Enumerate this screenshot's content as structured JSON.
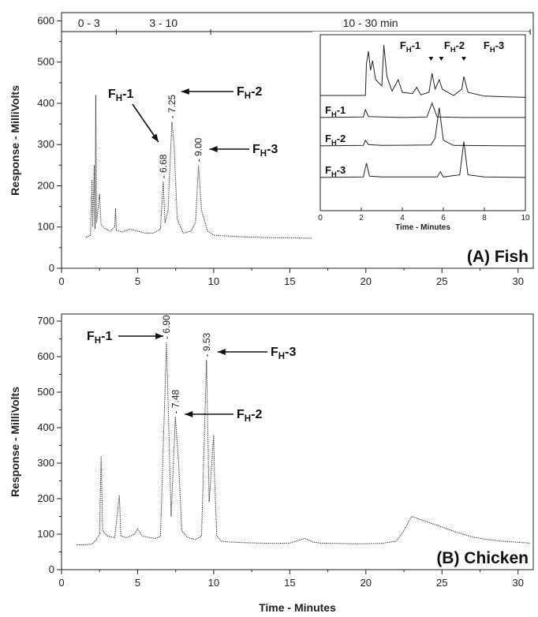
{
  "chart_data": [
    {
      "id": "A",
      "type": "line",
      "title": "(A) Fish",
      "xlabel": "",
      "ylabel": "Response - MilliVolts",
      "xlim": [
        0,
        31
      ],
      "ylim": [
        0,
        620
      ],
      "xticks": [
        0,
        5,
        10,
        15,
        20,
        25,
        30
      ],
      "yticks": [
        0,
        100,
        200,
        300,
        400,
        500,
        600
      ],
      "time_windows": [
        {
          "label": "0 - 3",
          "start": 0,
          "end": 3.6
        },
        {
          "label": "3 - 10",
          "start": 3.6,
          "end": 9.8
        },
        {
          "label": "10 - 30 min",
          "start": 9.8,
          "end": 30.8
        }
      ],
      "peaks": [
        {
          "name_main": "F",
          "name_sub": "H",
          "name_suffix": "-1",
          "time_label": "6.68",
          "x": 6.68,
          "y": 210
        },
        {
          "name_main": "F",
          "name_sub": "H",
          "name_suffix": "-2",
          "time_label": "7.25",
          "x": 7.25,
          "y": 355
        },
        {
          "name_main": "F",
          "name_sub": "H",
          "name_suffix": "-3",
          "time_label": "9.00",
          "x": 9.0,
          "y": 250
        }
      ],
      "series": [
        {
          "values": [
            [
              1.6,
              75
            ],
            [
              1.9,
              80
            ],
            [
              2.0,
              215
            ],
            [
              2.05,
              100
            ],
            [
              2.15,
              250
            ],
            [
              2.2,
              95
            ],
            [
              2.25,
              420
            ],
            [
              2.3,
              110
            ],
            [
              2.5,
              180
            ],
            [
              2.6,
              105
            ],
            [
              2.9,
              95
            ],
            [
              3.2,
              90
            ],
            [
              3.5,
              100
            ],
            [
              3.55,
              145
            ],
            [
              3.6,
              92
            ],
            [
              4.0,
              88
            ],
            [
              4.5,
              95
            ],
            [
              5.0,
              90
            ],
            [
              5.5,
              85
            ],
            [
              6.0,
              85
            ],
            [
              6.5,
              95
            ],
            [
              6.68,
              210
            ],
            [
              6.8,
              110
            ],
            [
              7.0,
              140
            ],
            [
              7.25,
              355
            ],
            [
              7.4,
              300
            ],
            [
              7.6,
              120
            ],
            [
              8.0,
              85
            ],
            [
              8.5,
              90
            ],
            [
              8.8,
              110
            ],
            [
              9.0,
              250
            ],
            [
              9.2,
              140
            ],
            [
              9.6,
              90
            ],
            [
              10.0,
              80
            ],
            [
              11,
              78
            ],
            [
              12,
              76
            ],
            [
              13,
              75
            ],
            [
              14,
              74
            ],
            [
              15,
              74
            ],
            [
              16,
              73
            ],
            [
              17,
              73
            ],
            [
              18,
              72
            ],
            [
              19,
              72
            ],
            [
              20,
              73
            ],
            [
              21,
              72
            ],
            [
              22,
              71
            ],
            [
              23,
              71
            ],
            [
              24,
              70
            ],
            [
              25,
              70
            ],
            [
              26,
              70
            ],
            [
              27,
              70
            ],
            [
              28,
              70
            ],
            [
              29,
              70
            ],
            [
              30,
              70
            ],
            [
              30.5,
              70
            ]
          ]
        }
      ],
      "inset": {
        "xlabel": "Time - Minutes",
        "xlim": [
          0,
          10
        ],
        "xticks": [
          0,
          2,
          4,
          6,
          8,
          10
        ],
        "peak_labels": [
          {
            "name_main": "F",
            "name_sub": "H",
            "name_suffix": "-1",
            "x": 5.4
          },
          {
            "name_main": "F",
            "name_sub": "H",
            "name_suffix": "-2",
            "x": 5.9
          },
          {
            "name_main": "F",
            "name_sub": "H",
            "name_suffix": "-3",
            "x": 7.0
          }
        ],
        "traces": [
          {
            "label": "",
            "values": [
              [
                0,
                0.05
              ],
              [
                2.2,
                0.05
              ],
              [
                2.25,
                0.55
              ],
              [
                2.35,
                0.75
              ],
              [
                2.45,
                0.45
              ],
              [
                2.55,
                0.6
              ],
              [
                2.7,
                0.3
              ],
              [
                3.0,
                0.2
              ],
              [
                3.1,
                0.85
              ],
              [
                3.25,
                0.35
              ],
              [
                3.5,
                0.12
              ],
              [
                3.8,
                0.3
              ],
              [
                4.0,
                0.1
              ],
              [
                4.5,
                0.08
              ],
              [
                4.7,
                0.18
              ],
              [
                4.9,
                0.06
              ],
              [
                5.3,
                0.1
              ],
              [
                5.45,
                0.4
              ],
              [
                5.6,
                0.15
              ],
              [
                5.8,
                0.3
              ],
              [
                5.95,
                0.15
              ],
              [
                6.5,
                0.05
              ],
              [
                6.9,
                0.15
              ],
              [
                7.0,
                0.35
              ],
              [
                7.2,
                0.1
              ],
              [
                8.0,
                0.04
              ],
              [
                10,
                0.02
              ]
            ]
          },
          {
            "label_main": "F",
            "label_sub": "H",
            "label_suffix": "-1",
            "values": [
              [
                0,
                0.02
              ],
              [
                2.1,
                0.03
              ],
              [
                2.2,
                0.2
              ],
              [
                2.35,
                0.04
              ],
              [
                3.0,
                0.03
              ],
              [
                4.0,
                0.02
              ],
              [
                5.2,
                0.03
              ],
              [
                5.45,
                0.35
              ],
              [
                5.7,
                0.03
              ],
              [
                7,
                0.02
              ],
              [
                10,
                0.02
              ]
            ]
          },
          {
            "label_main": "F",
            "label_sub": "H",
            "label_suffix": "-2",
            "values": [
              [
                0,
                0.02
              ],
              [
                2.1,
                0.03
              ],
              [
                2.2,
                0.15
              ],
              [
                2.35,
                0.05
              ],
              [
                3.0,
                0.03
              ],
              [
                5.4,
                0.04
              ],
              [
                5.6,
                0.2
              ],
              [
                5.8,
                0.9
              ],
              [
                6.0,
                0.15
              ],
              [
                6.5,
                0.03
              ],
              [
                10,
                0.02
              ]
            ]
          },
          {
            "label_main": "F",
            "label_sub": "H",
            "label_suffix": "-3",
            "values": [
              [
                0,
                0.02
              ],
              [
                2.1,
                0.03
              ],
              [
                2.25,
                0.35
              ],
              [
                2.4,
                0.05
              ],
              [
                3.0,
                0.03
              ],
              [
                5.7,
                0.03
              ],
              [
                5.85,
                0.15
              ],
              [
                6.0,
                0.03
              ],
              [
                6.8,
                0.08
              ],
              [
                7.0,
                0.85
              ],
              [
                7.2,
                0.08
              ],
              [
                8,
                0.03
              ],
              [
                10,
                0.02
              ]
            ]
          }
        ]
      }
    },
    {
      "id": "B",
      "type": "line",
      "title": "(B) Chicken",
      "xlabel": "Time - Minutes",
      "ylabel": "Response - MilliVolts",
      "xlim": [
        0,
        31
      ],
      "ylim": [
        0,
        720
      ],
      "xticks": [
        0,
        5,
        10,
        15,
        20,
        25,
        30
      ],
      "yticks": [
        0,
        100,
        200,
        300,
        400,
        500,
        600,
        700
      ],
      "peaks": [
        {
          "name_main": "F",
          "name_sub": "H",
          "name_suffix": "-1",
          "time_label": "6.90",
          "x": 6.9,
          "y": 640
        },
        {
          "name_main": "F",
          "name_sub": "H",
          "name_suffix": "-2",
          "time_label": "7.48",
          "x": 7.48,
          "y": 430
        },
        {
          "name_main": "F",
          "name_sub": "H",
          "name_suffix": "-3",
          "time_label": "9.53",
          "x": 9.53,
          "y": 590
        }
      ],
      "series": [
        {
          "values": [
            [
              1.0,
              70
            ],
            [
              1.5,
              70
            ],
            [
              2.0,
              72
            ],
            [
              2.3,
              85
            ],
            [
              2.5,
              100
            ],
            [
              2.6,
              320
            ],
            [
              2.7,
              110
            ],
            [
              3.0,
              95
            ],
            [
              3.5,
              90
            ],
            [
              3.8,
              210
            ],
            [
              3.9,
              95
            ],
            [
              4.3,
              90
            ],
            [
              4.8,
              100
            ],
            [
              5.0,
              115
            ],
            [
              5.3,
              95
            ],
            [
              5.8,
              90
            ],
            [
              6.2,
              88
            ],
            [
              6.5,
              95
            ],
            [
              6.9,
              640
            ],
            [
              7.0,
              480
            ],
            [
              7.2,
              150
            ],
            [
              7.48,
              430
            ],
            [
              7.7,
              300
            ],
            [
              7.9,
              110
            ],
            [
              8.3,
              90
            ],
            [
              8.8,
              85
            ],
            [
              9.2,
              95
            ],
            [
              9.53,
              590
            ],
            [
              9.7,
              190
            ],
            [
              10.0,
              380
            ],
            [
              10.05,
              265
            ],
            [
              10.2,
              95
            ],
            [
              10.5,
              80
            ],
            [
              11,
              78
            ],
            [
              12,
              76
            ],
            [
              13,
              75
            ],
            [
              14,
              74
            ],
            [
              15,
              75
            ],
            [
              16,
              88
            ],
            [
              16.5,
              78
            ],
            [
              17,
              75
            ],
            [
              18,
              74
            ],
            [
              19,
              73
            ],
            [
              20,
              73
            ],
            [
              21,
              74
            ],
            [
              22,
              80
            ],
            [
              22.5,
              110
            ],
            [
              23,
              150
            ],
            [
              24,
              135
            ],
            [
              25,
              120
            ],
            [
              26,
              105
            ],
            [
              27,
              92
            ],
            [
              28,
              85
            ],
            [
              29,
              80
            ],
            [
              30,
              77
            ],
            [
              30.8,
              75
            ]
          ]
        }
      ]
    }
  ]
}
